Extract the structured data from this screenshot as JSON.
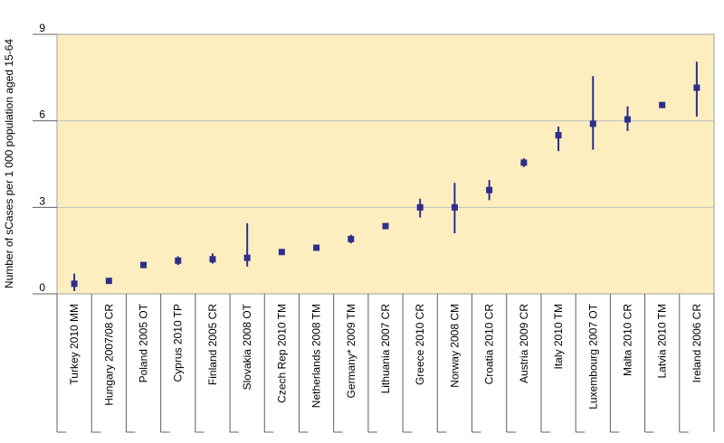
{
  "chart_data": {
    "type": "scatter",
    "title": "",
    "xlabel": "",
    "ylabel": "Number of sCases per 1 000 population aged 15-64",
    "ylim": [
      0,
      9
    ],
    "yticks": [
      0,
      3,
      6,
      9
    ],
    "grid": "horizontal",
    "colors": {
      "plot_background": "#FCEEBF",
      "marker": "#2E2E8C",
      "gridline": "#BFBFBF"
    },
    "categories": [
      "Turkey 2010 MM",
      "Hungary 2007/08 CR",
      "Poland 2005 OT",
      "Cyprus 2010 TP",
      "Finland 2005 CR",
      "Slovakia 2008 OT",
      "Czech Rep 2010 TM",
      "Netherlands 2008 TM",
      "Germany* 2009 TM",
      "Lithuania 2007 CR",
      "Greece 2010 CR",
      "Norway 2008 CM",
      "Croatia 2010 CR",
      "Austria 2009 CR",
      "Italy 2010 TM",
      "Luxembourg 2007 OT",
      "Malta 2010 CR",
      "Latvia 2010 TM",
      "Ireland 2006 CR"
    ],
    "series": [
      {
        "values": [
          0.35,
          0.45,
          1.0,
          1.15,
          1.2,
          1.25,
          1.45,
          1.6,
          1.9,
          2.35,
          3.0,
          3.0,
          3.6,
          4.55,
          5.5,
          5.9,
          6.05,
          6.55,
          7.15
        ],
        "low": [
          0.1,
          0.4,
          0.9,
          1.0,
          1.05,
          0.95,
          1.35,
          1.55,
          1.75,
          2.3,
          2.65,
          2.1,
          3.25,
          4.4,
          4.95,
          5.0,
          5.65,
          6.5,
          6.15
        ],
        "high": [
          0.7,
          0.55,
          1.1,
          1.3,
          1.4,
          2.45,
          1.55,
          1.7,
          2.05,
          2.4,
          3.3,
          3.85,
          3.95,
          4.7,
          5.8,
          7.55,
          6.5,
          6.6,
          8.05
        ]
      }
    ]
  }
}
